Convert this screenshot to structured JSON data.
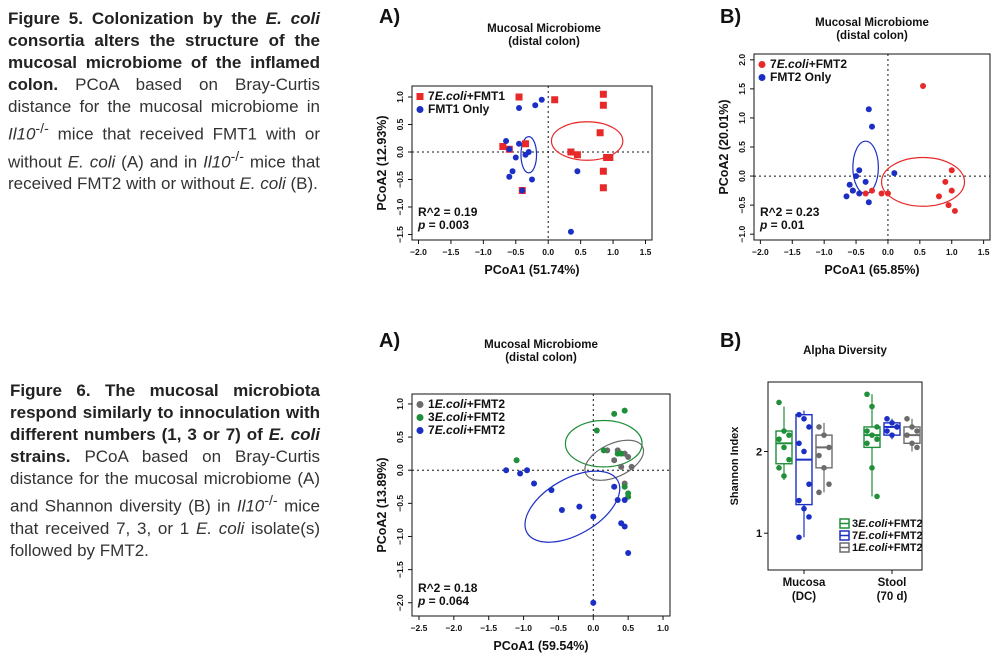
{
  "fig5": {
    "caption_label": "Figure 5.",
    "caption_bold": "Colonization by the",
    "caption_ecoli": "E. coli",
    "caption_bold2": "consortia alters the structure of the mucosal microbiome of the inflamed colon.",
    "caption_text1": "PCoA based on Bray-Curtis distance for the mucosal microbiome in",
    "caption_gene": "Il10",
    "caption_sup": "-/-",
    "caption_text2": "mice that received FMT1 with or without",
    "caption_text3": "(A) and in",
    "caption_text4": "mice that received FMT2 with or without",
    "caption_text5": "(B)."
  },
  "fig6": {
    "caption_label": "Figure 6.",
    "caption_bold": "The mucosal microbiota respond similarly to innoculation with different numbers (1, 3 or 7) of",
    "caption_ecoli": "E. coli",
    "caption_bold2": "strains.",
    "caption_text1": "PCoA based on Bray-Curtis distance for the mucosal microbiome (A) and Shannon diversity (B) in",
    "caption_gene": "Il10",
    "caption_sup": "-/-",
    "caption_text2": "mice that received 7, 3, or 1",
    "caption_text3": "isolate(s) followed by FMT2."
  },
  "panel_letters": {
    "a": "A)",
    "b": "B)"
  },
  "chart_data": [
    {
      "id": "fig5a",
      "type": "scatter",
      "title": "Mucosal Microbiome",
      "subtitle": "(distal colon)",
      "xlabel": "PCoA1 (51.74%)",
      "ylabel": "PCoA2 (12.93%)",
      "xlim": [
        -2.1,
        1.6
      ],
      "ylim": [
        -1.6,
        1.2
      ],
      "xticks": [
        -2.0,
        -1.5,
        -1.0,
        -0.5,
        0.0,
        0.5,
        1.0,
        1.5
      ],
      "yticks": [
        -1.5,
        -1.0,
        -0.5,
        0.0,
        0.5,
        1.0
      ],
      "stats": [
        "R^2 = 0.19",
        "p = 0.003"
      ],
      "legend": [
        {
          "label_pre": "7",
          "label_it": "E.coli",
          "label_post": "+FMT1",
          "color": "#e8292a",
          "marker": "square"
        },
        {
          "label_pre": "",
          "label_it": "",
          "label_post": "FMT1 Only",
          "color": "#1c2fc4",
          "marker": "circle"
        }
      ],
      "series": [
        {
          "name": "7E.coli+FMT1",
          "color": "#e8292a",
          "marker": "square",
          "x": [
            -0.45,
            0.1,
            0.35,
            0.45,
            -0.35,
            -0.7,
            -0.6,
            0.85,
            0.85,
            0.9,
            0.95,
            0.85,
            0.8,
            0.85,
            -0.4
          ],
          "y": [
            1.0,
            0.95,
            0.0,
            -0.05,
            0.15,
            0.1,
            0.05,
            1.05,
            0.85,
            -0.1,
            -0.1,
            -0.35,
            0.35,
            -0.65,
            -0.7
          ]
        },
        {
          "name": "FMT1 Only",
          "color": "#1c2fc4",
          "marker": "circle",
          "x": [
            -0.45,
            -0.2,
            -0.65,
            -0.6,
            -0.5,
            -0.45,
            -0.3,
            -0.35,
            -0.55,
            -0.6,
            -0.25,
            -0.4,
            0.45,
            0.35,
            -0.1
          ],
          "y": [
            0.8,
            0.85,
            0.2,
            0.05,
            -0.1,
            0.15,
            0.0,
            -0.05,
            -0.35,
            -0.45,
            -0.5,
            -0.7,
            -0.35,
            -1.45,
            0.95
          ]
        }
      ],
      "ellipses": [
        {
          "color": "#e8292a",
          "cx": 0.6,
          "cy": 0.2,
          "rx": 0.55,
          "ry": 0.35,
          "angle": 0
        },
        {
          "color": "#1c2fc4",
          "cx": -0.3,
          "cy": -0.05,
          "rx": 0.12,
          "ry": 0.33,
          "angle": 0
        }
      ],
      "grid": false
    },
    {
      "id": "fig5b",
      "type": "scatter",
      "title": "Mucosal Microbiome",
      "subtitle": "(distal colon)",
      "xlabel": "PCoA1 (65.85%)",
      "ylabel": "PCoA2 (20.01%)",
      "xlim": [
        -2.1,
        1.6
      ],
      "ylim": [
        -1.1,
        2.1
      ],
      "xticks": [
        -2.0,
        -1.5,
        -1.0,
        -0.5,
        0.0,
        0.5,
        1.0,
        1.5
      ],
      "yticks": [
        -1.0,
        -0.5,
        0.0,
        0.5,
        1.0,
        1.5,
        2.0
      ],
      "stats": [
        "R^2 = 0.23",
        "p = 0.01"
      ],
      "legend": [
        {
          "label_pre": "7",
          "label_it": "E.coli",
          "label_post": "+FMT2",
          "color": "#e8292a",
          "marker": "circle"
        },
        {
          "label_pre": "",
          "label_it": "",
          "label_post": "FMT2 Only",
          "color": "#1c2fc4",
          "marker": "circle"
        }
      ],
      "series": [
        {
          "name": "7E.coli+FMT2",
          "color": "#e8292a",
          "marker": "circle",
          "x": [
            0.55,
            -0.55,
            -0.35,
            -0.25,
            -0.1,
            0.0,
            0.9,
            1.0,
            1.05,
            0.8,
            0.95,
            1.0
          ],
          "y": [
            1.55,
            -0.25,
            -0.3,
            -0.25,
            -0.3,
            -0.3,
            -0.1,
            -0.25,
            -0.6,
            -0.35,
            -0.5,
            0.1
          ]
        },
        {
          "name": "FMT2 Only",
          "color": "#1c2fc4",
          "marker": "circle",
          "x": [
            -0.3,
            -0.25,
            -0.45,
            -0.6,
            -0.55,
            -0.5,
            -0.35,
            -0.45,
            -0.3,
            0.1,
            -0.65
          ],
          "y": [
            1.15,
            0.85,
            0.1,
            -0.15,
            -0.25,
            0.0,
            -0.1,
            -0.3,
            -0.45,
            0.05,
            -0.35
          ]
        }
      ],
      "ellipses": [
        {
          "color": "#e8292a",
          "cx": 0.55,
          "cy": -0.1,
          "rx": 0.65,
          "ry": 0.42,
          "angle": 0
        },
        {
          "color": "#1c2fc4",
          "cx": -0.35,
          "cy": 0.15,
          "rx": 0.2,
          "ry": 0.45,
          "angle": 0
        }
      ],
      "grid": false
    },
    {
      "id": "fig6a",
      "type": "scatter",
      "title": "Mucosal Microbiome",
      "subtitle": "(distal colon)",
      "xlabel": "PCoA1 (59.54%)",
      "ylabel": "PCoA2 (13.89%)",
      "xlim": [
        -2.6,
        1.1
      ],
      "ylim": [
        -2.2,
        1.15
      ],
      "xticks": [
        -2.5,
        -2.0,
        -1.5,
        -1.0,
        -0.5,
        0.0,
        0.5,
        1.0
      ],
      "yticks": [
        -2.0,
        -1.5,
        -1.0,
        -0.5,
        0.0,
        0.5,
        1.0
      ],
      "stats": [
        "R^2 = 0.18",
        "p = 0.064"
      ],
      "legend": [
        {
          "label_pre": "1",
          "label_it": "E.coli",
          "label_post": "+FMT2",
          "color": "#6b6b6b",
          "marker": "circle"
        },
        {
          "label_pre": "3",
          "label_it": "E.coli",
          "label_post": "+FMT2",
          "color": "#1f8f3a",
          "marker": "circle"
        },
        {
          "label_pre": "7",
          "label_it": "E.coli",
          "label_post": "+FMT2",
          "color": "#1c2fc4",
          "marker": "circle"
        }
      ],
      "series": [
        {
          "name": "1E.coli+FMT2",
          "color": "#6b6b6b",
          "marker": "circle",
          "x": [
            0.35,
            0.45,
            0.5,
            0.55,
            0.2,
            0.3,
            0.4,
            0.45
          ],
          "y": [
            0.3,
            0.25,
            0.2,
            0.05,
            0.3,
            0.15,
            0.05,
            -0.2
          ]
        },
        {
          "name": "3E.coli+FMT2",
          "color": "#1f8f3a",
          "marker": "circle",
          "x": [
            0.05,
            0.3,
            0.45,
            0.15,
            0.35,
            0.4,
            0.45,
            0.5,
            -1.1,
            0.5
          ],
          "y": [
            0.6,
            0.85,
            0.9,
            0.3,
            0.25,
            0.25,
            -0.25,
            -0.35,
            0.15,
            -0.4
          ]
        },
        {
          "name": "7E.coli+FMT2",
          "color": "#1c2fc4",
          "marker": "circle",
          "x": [
            -1.25,
            -1.05,
            -0.95,
            -0.85,
            -0.6,
            0.3,
            0.35,
            -0.2,
            0.0,
            -0.45
          ],
          "y": [
            0.0,
            -0.05,
            0.0,
            -0.2,
            -0.3,
            -0.25,
            -0.45,
            -0.55,
            -0.7,
            -0.6
          ]
        }
      ],
      "extra_points": [
        {
          "color": "#1c2fc4",
          "x": 0.45,
          "y": -0.45
        },
        {
          "color": "#1c2fc4",
          "x": 0.4,
          "y": -0.8
        },
        {
          "color": "#1c2fc4",
          "x": 0.45,
          "y": -0.85
        },
        {
          "color": "#1c2fc4",
          "x": 0.5,
          "y": -1.25
        },
        {
          "color": "#1c2fc4",
          "x": 0.0,
          "y": -2.0
        }
      ],
      "ellipses": [
        {
          "color": "#1f8f3a",
          "cx": 0.15,
          "cy": 0.4,
          "rx": 0.55,
          "ry": 0.35,
          "angle": 0
        },
        {
          "color": "#6b6b6b",
          "cx": 0.3,
          "cy": 0.15,
          "rx": 0.45,
          "ry": 0.25,
          "angle": -25
        },
        {
          "color": "#1c2fc4",
          "cx": -0.3,
          "cy": -0.55,
          "rx": 0.75,
          "ry": 0.42,
          "angle": -30
        }
      ],
      "grid": false
    },
    {
      "id": "fig6b",
      "type": "box",
      "title": "Alpha Diversity",
      "ylabel": "Shannon Index",
      "ylim": [
        0.55,
        2.85
      ],
      "yticks": [
        1,
        2
      ],
      "categories": [
        "Mucosa",
        "Stool"
      ],
      "category_sublabels": [
        "(DC)",
        "(70 d)"
      ],
      "legend": [
        {
          "label_pre": "3",
          "label_it": "E.coli",
          "label_post": "+FMT2",
          "color": "#1f8f3a"
        },
        {
          "label_pre": "7",
          "label_it": "E.coli",
          "label_post": "+FMT2",
          "color": "#1c2fc4"
        },
        {
          "label_pre": "1",
          "label_it": "E.coli",
          "label_post": "+FMT2",
          "color": "#6b6b6b"
        }
      ],
      "series": [
        {
          "name": "3E.coli+FMT2",
          "color": "#1f8f3a",
          "groups": [
            {
              "q1": 1.85,
              "median": 2.1,
              "q3": 2.25,
              "lo": 1.65,
              "hi": 2.55,
              "points": [
                2.6,
                2.25,
                2.2,
                2.15,
                2.05,
                1.9,
                1.8,
                1.7
              ]
            },
            {
              "q1": 2.05,
              "median": 2.2,
              "q3": 2.3,
              "lo": 1.45,
              "hi": 2.7,
              "points": [
                2.7,
                2.55,
                2.3,
                2.25,
                2.2,
                2.15,
                2.1,
                1.8,
                1.45
              ]
            }
          ]
        },
        {
          "name": "7E.coli+FMT2",
          "color": "#1c2fc4",
          "groups": [
            {
              "q1": 1.35,
              "median": 1.9,
              "q3": 2.45,
              "lo": 0.95,
              "hi": 2.5,
              "points": [
                2.45,
                2.4,
                2.3,
                2.1,
                2.0,
                1.6,
                1.4,
                1.3,
                1.2,
                0.95
              ]
            },
            {
              "q1": 2.2,
              "median": 2.3,
              "q3": 2.35,
              "lo": 2.15,
              "hi": 2.4,
              "points": [
                2.4,
                2.35,
                2.3,
                2.25,
                2.2,
                2.3
              ]
            }
          ]
        },
        {
          "name": "1E.coli+FMT2",
          "color": "#6b6b6b",
          "groups": [
            {
              "q1": 1.8,
              "median": 2.05,
              "q3": 2.2,
              "lo": 1.5,
              "hi": 2.35,
              "points": [
                2.3,
                2.2,
                2.05,
                1.95,
                1.8,
                1.6,
                1.5
              ]
            },
            {
              "q1": 2.1,
              "median": 2.2,
              "q3": 2.3,
              "lo": 2.0,
              "hi": 2.4,
              "points": [
                2.4,
                2.3,
                2.25,
                2.2,
                2.1,
                2.05
              ]
            }
          ]
        }
      ]
    }
  ]
}
